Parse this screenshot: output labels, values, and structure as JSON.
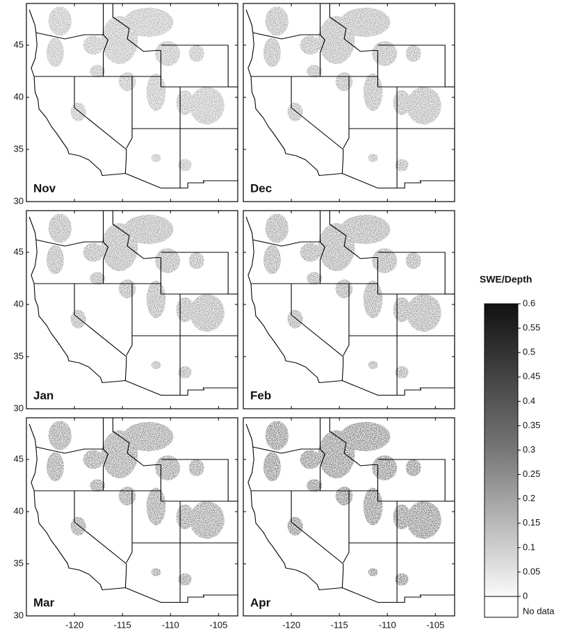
{
  "panels": [
    {
      "label": "Nov"
    },
    {
      "label": "Dec"
    },
    {
      "label": "Jan"
    },
    {
      "label": "Feb"
    },
    {
      "label": "Mar"
    },
    {
      "label": "Apr"
    }
  ],
  "axes": {
    "xlim": [
      -125,
      -103
    ],
    "ylim": [
      30,
      49
    ],
    "xticks": [
      -120,
      -115,
      -110,
      -105
    ],
    "yticks": [
      30,
      35,
      40,
      45
    ]
  },
  "legend": {
    "title": "SWE/Depth",
    "ticks": [
      0.6,
      0.55,
      0.5,
      0.45,
      0.4,
      0.35,
      0.3,
      0.25,
      0.2,
      0.15,
      0.1,
      0.05,
      0
    ],
    "no_data": "No data"
  }
}
